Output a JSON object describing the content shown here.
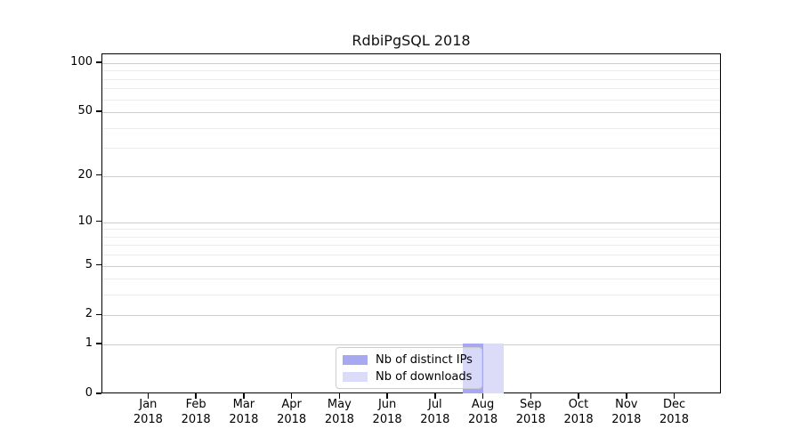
{
  "title": "RdbiPgSQL 2018",
  "colors": {
    "distinct_ips": "#a8a8f0",
    "downloads": "#dcdcf8",
    "grid_major": "#cccccc",
    "grid_minor": "#ececec",
    "spine": "#000000",
    "legend_border": "#cccccc"
  },
  "legend": {
    "items": [
      {
        "label": "Nb of distinct IPs",
        "color": "#a8a8f0"
      },
      {
        "label": "Nb of downloads",
        "color": "#dcdcf8"
      }
    ]
  },
  "chart_data": {
    "type": "bar",
    "title": "RdbiPgSQL 2018",
    "months": [
      "Jan",
      "Feb",
      "Mar",
      "Apr",
      "May",
      "Jun",
      "Jul",
      "Aug",
      "Sep",
      "Oct",
      "Nov",
      "Dec"
    ],
    "year_label": "2018",
    "categories": [
      "Jan 2018",
      "Feb 2018",
      "Mar 2018",
      "Apr 2018",
      "May 2018",
      "Jun 2018",
      "Jul 2018",
      "Aug 2018",
      "Sep 2018",
      "Oct 2018",
      "Nov 2018",
      "Dec 2018"
    ],
    "series": [
      {
        "name": "Nb of distinct IPs",
        "color": "#a8a8f0",
        "values": [
          0,
          0,
          0,
          0,
          0,
          0,
          0,
          1,
          0,
          0,
          0,
          0
        ]
      },
      {
        "name": "Nb of downloads",
        "color": "#dcdcf8",
        "values": [
          0,
          0,
          0,
          0,
          0,
          0,
          0,
          1,
          0,
          0,
          0,
          0
        ]
      }
    ],
    "yscale": "log1p",
    "ylim": [
      0,
      100
    ],
    "y_major_ticks": [
      0,
      1,
      2,
      5,
      10,
      20,
      50,
      100
    ],
    "y_minor_ticks": [
      3,
      4,
      6,
      7,
      8,
      9,
      30,
      40,
      60,
      70,
      80,
      90
    ],
    "grid": true,
    "legend_position": "bottom-center"
  }
}
